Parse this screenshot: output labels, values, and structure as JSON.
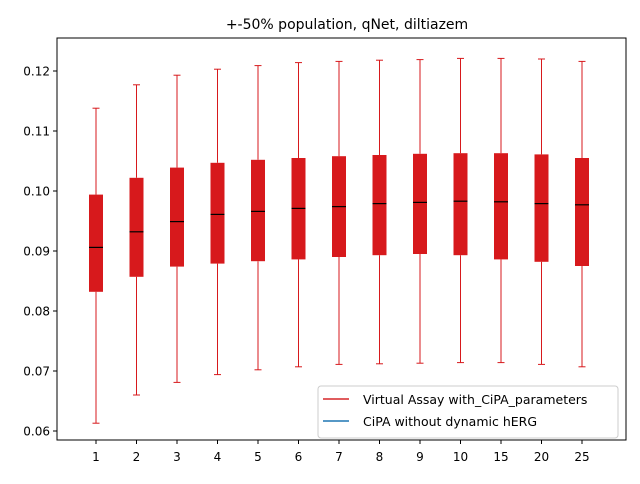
{
  "chart_data": {
    "type": "box",
    "title": "+-50% population, qNet, diltiazem",
    "xlabel": "",
    "ylabel": "",
    "categories": [
      "1",
      "2",
      "3",
      "4",
      "5",
      "6",
      "7",
      "8",
      "9",
      "10",
      "15",
      "20",
      "25"
    ],
    "ylim": [
      0.0585,
      0.1255
    ],
    "yticks": [
      0.06,
      0.07,
      0.08,
      0.09,
      0.1,
      0.11,
      0.12
    ],
    "ytick_labels": [
      "0.06",
      "0.07",
      "0.08",
      "0.09",
      "0.10",
      "0.11",
      "0.12"
    ],
    "grid": false,
    "boxes": [
      {
        "whislo": 0.0613,
        "q1": 0.0832,
        "med": 0.0906,
        "q3": 0.0994,
        "whishi": 0.1138
      },
      {
        "whislo": 0.066,
        "q1": 0.0857,
        "med": 0.0932,
        "q3": 0.1022,
        "whishi": 0.1177
      },
      {
        "whislo": 0.0681,
        "q1": 0.0874,
        "med": 0.0949,
        "q3": 0.1039,
        "whishi": 0.1193
      },
      {
        "whislo": 0.0694,
        "q1": 0.0879,
        "med": 0.0961,
        "q3": 0.1047,
        "whishi": 0.1203
      },
      {
        "whislo": 0.0702,
        "q1": 0.0883,
        "med": 0.0966,
        "q3": 0.1052,
        "whishi": 0.1209
      },
      {
        "whislo": 0.0707,
        "q1": 0.0886,
        "med": 0.0971,
        "q3": 0.1055,
        "whishi": 0.1214
      },
      {
        "whislo": 0.0711,
        "q1": 0.089,
        "med": 0.0974,
        "q3": 0.1058,
        "whishi": 0.1216
      },
      {
        "whislo": 0.0712,
        "q1": 0.0893,
        "med": 0.0979,
        "q3": 0.106,
        "whishi": 0.1218
      },
      {
        "whislo": 0.0713,
        "q1": 0.0895,
        "med": 0.0981,
        "q3": 0.1062,
        "whishi": 0.1219
      },
      {
        "whislo": 0.0714,
        "q1": 0.0893,
        "med": 0.0983,
        "q3": 0.1063,
        "whishi": 0.1221
      },
      {
        "whislo": 0.0714,
        "q1": 0.0886,
        "med": 0.0982,
        "q3": 0.1063,
        "whishi": 0.1221
      },
      {
        "whislo": 0.0711,
        "q1": 0.0882,
        "med": 0.0979,
        "q3": 0.1061,
        "whishi": 0.122
      },
      {
        "whislo": 0.0707,
        "q1": 0.0875,
        "med": 0.0977,
        "q3": 0.1055,
        "whishi": 0.1216
      }
    ],
    "box_color": "#d7191c",
    "median_color": "#000000",
    "legend_position": "lower-right",
    "legend": [
      {
        "label": "Virtual Assay with_CiPA_parameters",
        "color": "#d62728"
      },
      {
        "label": "CiPA without dynamic hERG",
        "color": "#1f77b4"
      }
    ]
  }
}
